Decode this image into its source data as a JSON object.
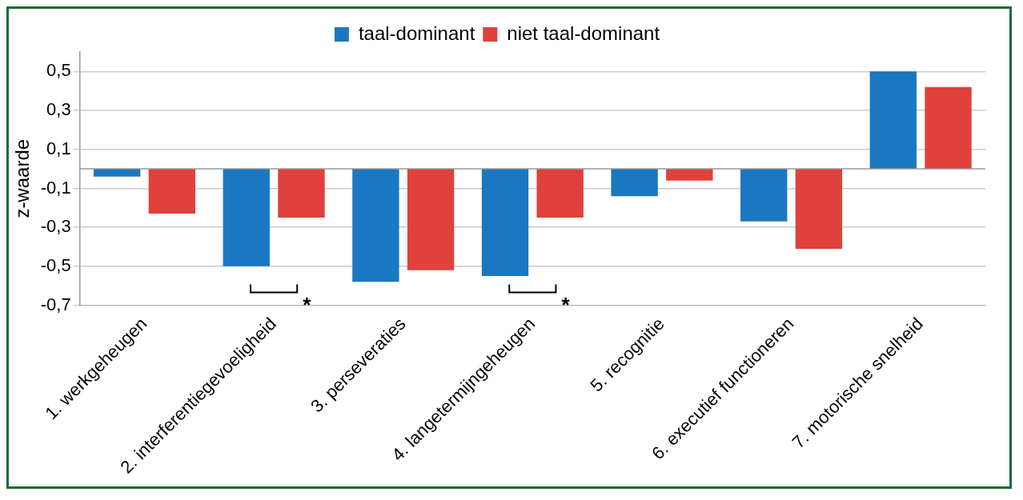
{
  "chart_data": {
    "type": "bar",
    "ylabel": "z-waarde",
    "categories": [
      "1. werkgeheugen",
      "2. interferentiegevoeligheid",
      "3. perseveraties",
      "4. langetermijngeheugen",
      "5. recognitie",
      "6. executief functioneren",
      "7. motorische snelheid"
    ],
    "series": [
      {
        "name": "taal-dominant",
        "color": "#1a78c2",
        "values": [
          -0.04,
          -0.5,
          -0.58,
          -0.55,
          -0.14,
          -0.27,
          0.5
        ]
      },
      {
        "name": "niet taal-dominant",
        "color": "#e0413c",
        "values": [
          -0.23,
          -0.25,
          -0.52,
          -0.25,
          -0.06,
          -0.41,
          0.42
        ]
      }
    ],
    "ylim": [
      -0.7,
      0.6
    ],
    "yticks": [
      {
        "value": 0.5,
        "label": "0,5"
      },
      {
        "value": 0.3,
        "label": "0,3"
      },
      {
        "value": 0.1,
        "label": "0,1"
      },
      {
        "value": -0.1,
        "label": "-0,1"
      },
      {
        "value": -0.3,
        "label": "-0,3"
      },
      {
        "value": -0.5,
        "label": "-0,5"
      },
      {
        "value": -0.7,
        "label": "-0,7"
      }
    ],
    "grid": "y",
    "legend": "top",
    "annotations": [
      "*",
      "*"
    ]
  }
}
